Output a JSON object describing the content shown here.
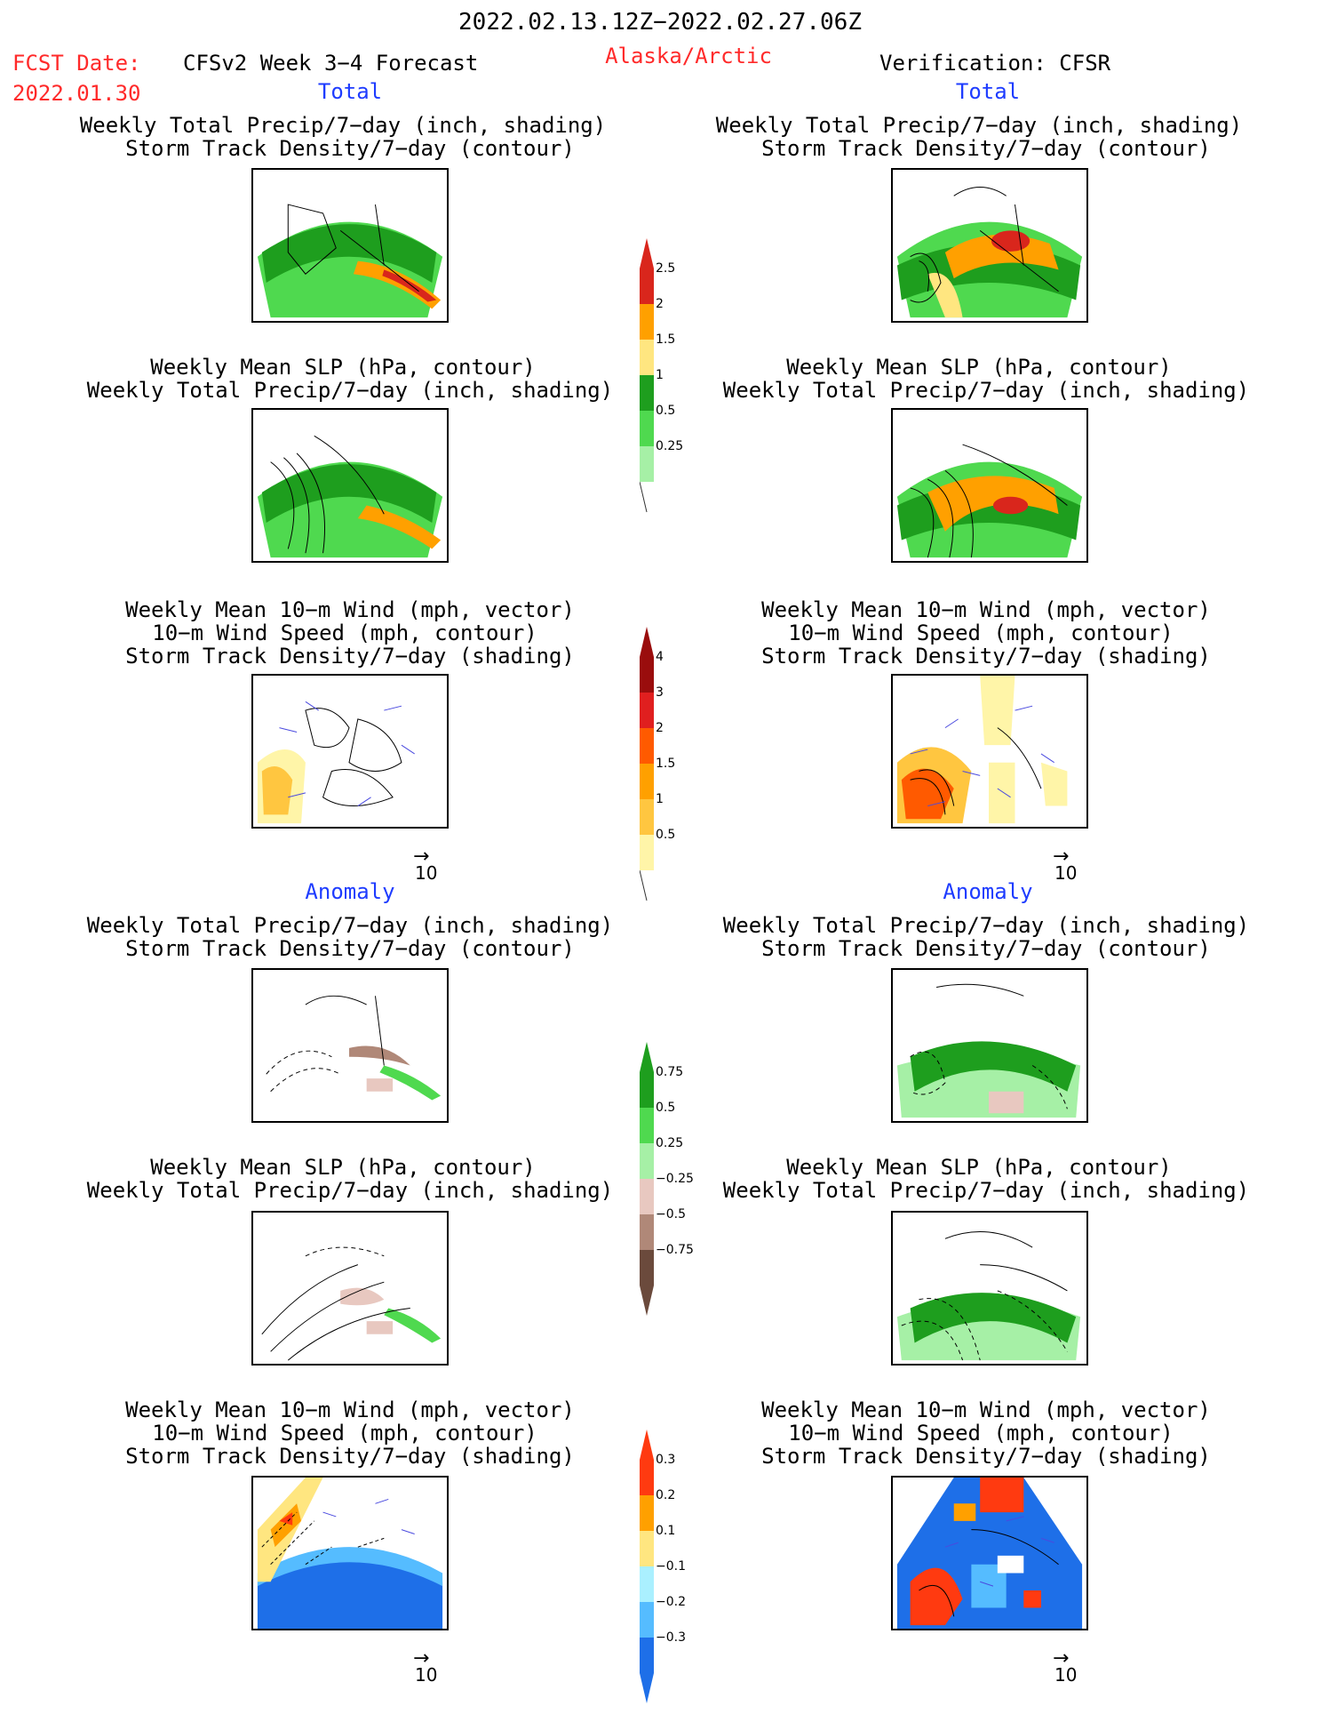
{
  "header": {
    "date_range": "2022.02.13.12Z−2022.02.27.06Z",
    "fcst_label": "FCST Date:",
    "fcst_date": "2022.01.30",
    "model": "CFSv2 Week 3−4 Forecast",
    "region": "Alaska/Arctic",
    "verification": "Verification: CFSR"
  },
  "sections": {
    "total": "Total",
    "anomaly": "Anomaly"
  },
  "panels": {
    "precip_track": [
      "Weekly Total Precip/7−day (inch, shading)",
      "Storm Track Density/7−day (contour)"
    ],
    "slp_precip": [
      "Weekly Mean SLP (hPa, contour)",
      "Weekly Total Precip/7−day (inch, shading)"
    ],
    "wind_track": [
      "Weekly Mean 10−m Wind (mph, vector)",
      "10−m Wind Speed (mph, contour)",
      "Storm Track Density/7−day (shading)"
    ]
  },
  "vector_ref": "10",
  "colorbars": {
    "precip_total": {
      "labels": [
        "2.5",
        "2",
        "1.5",
        "1",
        "0.5",
        "0.25"
      ],
      "colors": [
        "#d9261c",
        "#ffa000",
        "#ffe680",
        "#1e9e1e",
        "#4fd94f",
        "#a6f0a6"
      ]
    },
    "track_total": {
      "labels": [
        "4",
        "3",
        "2",
        "1.5",
        "1",
        "0.5"
      ],
      "colors": [
        "#9a0d0d",
        "#e01f1f",
        "#ff5a00",
        "#ffa000",
        "#ffc640",
        "#fff5a8"
      ]
    },
    "precip_anom": {
      "labels": [
        "0.75",
        "0.5",
        "0.25",
        "−0.25",
        "−0.5",
        "−0.75"
      ],
      "colors": [
        "#1e9e1e",
        "#4fd94f",
        "#a6f0a6",
        "#e8c8c0",
        "#b08878",
        "#6b4a3c"
      ]
    },
    "track_anom": {
      "labels": [
        "0.3",
        "0.2",
        "0.1",
        "−0.1",
        "−0.2",
        "−0.3"
      ],
      "colors": [
        "#ff3a10",
        "#ffa000",
        "#ffe680",
        "#aaf0ff",
        "#55bcff",
        "#1e6fe8"
      ]
    }
  }
}
